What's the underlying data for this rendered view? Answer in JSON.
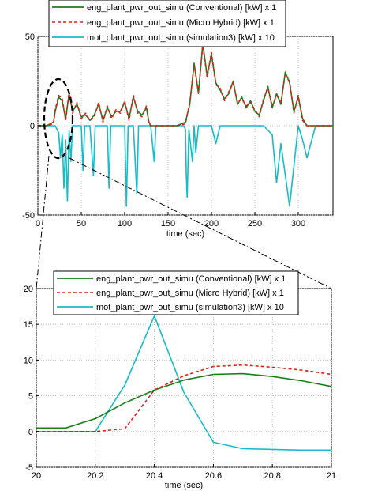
{
  "chart_data": [
    {
      "type": "line",
      "xlabel": "time (sec)",
      "ylabel": "",
      "xlim": [
        0,
        340
      ],
      "ylim": [
        -50,
        50
      ],
      "xticks": [
        0,
        50,
        100,
        150,
        200,
        250,
        300
      ],
      "yticks": [
        -50,
        0,
        50
      ],
      "grid": true,
      "legend_position": "top",
      "colors": {
        "conventional": "#1a7f1a",
        "hybrid": "#e0201b",
        "motor": "#16bcc8",
        "zoom_marker": "#000000"
      },
      "series": [
        {
          "name": "eng_plant_pwr_out_simu (Conventional) [kW] x 1",
          "color": "#1a7f1a",
          "style": "solid",
          "x": [
            0,
            10,
            18,
            20,
            24,
            28,
            32,
            36,
            40,
            45,
            50,
            55,
            60,
            65,
            70,
            75,
            80,
            85,
            90,
            95,
            100,
            105,
            110,
            115,
            120,
            125,
            128,
            130,
            140,
            150,
            160,
            170,
            175,
            180,
            185,
            190,
            195,
            200,
            205,
            210,
            215,
            220,
            225,
            230,
            235,
            240,
            245,
            250,
            255,
            260,
            265,
            270,
            275,
            280,
            285,
            290,
            295,
            300,
            305,
            310,
            315,
            320,
            330,
            340
          ],
          "y": [
            0,
            0,
            2,
            8,
            16,
            14,
            4,
            18,
            8,
            12,
            5,
            6,
            3,
            6,
            12,
            3,
            10,
            5,
            8,
            8,
            13,
            4,
            16,
            8,
            6,
            10,
            2,
            0,
            0,
            0,
            0,
            2,
            12,
            35,
            18,
            46,
            28,
            40,
            24,
            20,
            15,
            18,
            25,
            12,
            16,
            10,
            14,
            8,
            6,
            14,
            22,
            10,
            18,
            12,
            30,
            24,
            8,
            16,
            4,
            0,
            0,
            0,
            0,
            0
          ]
        },
        {
          "name": "eng_plant_pwr_out_simu (Micro Hybrid) [kW] x 1",
          "color": "#e0201b",
          "style": "dashed",
          "x": [
            0,
            10,
            18,
            20,
            24,
            28,
            32,
            36,
            40,
            45,
            50,
            55,
            60,
            65,
            70,
            75,
            80,
            85,
            90,
            95,
            100,
            105,
            110,
            115,
            120,
            125,
            128,
            130,
            140,
            150,
            160,
            170,
            175,
            180,
            185,
            190,
            195,
            200,
            205,
            210,
            215,
            220,
            225,
            230,
            235,
            240,
            245,
            250,
            255,
            260,
            265,
            270,
            275,
            280,
            285,
            290,
            295,
            300,
            305,
            310,
            315,
            320,
            330,
            340
          ],
          "y": [
            0,
            0,
            1,
            9,
            17,
            15,
            3,
            19,
            7,
            13,
            4,
            7,
            3,
            5,
            13,
            2,
            11,
            4,
            9,
            7,
            14,
            3,
            17,
            7,
            5,
            11,
            1,
            0,
            0,
            0,
            0,
            1,
            13,
            34,
            19,
            45,
            27,
            41,
            23,
            21,
            14,
            19,
            24,
            13,
            15,
            11,
            13,
            9,
            5,
            15,
            21,
            11,
            17,
            13,
            29,
            25,
            7,
            17,
            3,
            0,
            0,
            0,
            0,
            0
          ]
        },
        {
          "name": "mot_plant_pwr_out_simu (simulation3) [kW] x 10",
          "color": "#16bcc8",
          "style": "solid",
          "x": [
            0,
            20,
            24,
            26,
            28,
            30,
            32,
            34,
            36,
            38,
            40,
            50,
            52,
            54,
            60,
            64,
            66,
            70,
            80,
            82,
            84,
            90,
            100,
            102,
            104,
            110,
            114,
            116,
            120,
            130,
            134,
            136,
            150,
            160,
            168,
            170,
            171,
            172,
            174,
            178,
            180,
            182,
            185,
            190,
            200,
            205,
            210,
            220,
            240,
            260,
            270,
            275,
            280,
            290,
            300,
            305,
            310,
            320,
            340
          ],
          "y": [
            0,
            0,
            -4,
            -18,
            -5,
            -35,
            -8,
            -42,
            -3,
            -20,
            0,
            0,
            -25,
            0,
            0,
            -28,
            0,
            0,
            0,
            -35,
            0,
            0,
            0,
            -45,
            0,
            0,
            -38,
            0,
            0,
            0,
            -20,
            0,
            0,
            0,
            0,
            -2,
            -28,
            -40,
            -2,
            -20,
            0,
            -15,
            0,
            0,
            0,
            -10,
            0,
            0,
            0,
            0,
            -5,
            -32,
            -10,
            -45,
            0,
            -8,
            -18,
            0,
            0
          ]
        }
      ]
    },
    {
      "type": "line",
      "xlabel": "time (sec)",
      "ylabel": "",
      "xlim": [
        20,
        21
      ],
      "ylim": [
        -5,
        20
      ],
      "xticks": [
        "20",
        "20.2",
        "20.4",
        "20.6",
        "20.8",
        "21"
      ],
      "yticks": [
        "-5",
        "0",
        "5",
        "10",
        "15",
        "20"
      ],
      "grid": true,
      "legend_position": "top",
      "series": [
        {
          "name": "eng_plant_pwr_out_simu (Conventional) [kW] x 1",
          "color": "#1a7f1a",
          "style": "solid",
          "x": [
            20,
            20.1,
            20.2,
            20.3,
            20.4,
            20.5,
            20.6,
            20.7,
            20.8,
            20.9,
            21
          ],
          "y": [
            0.5,
            0.5,
            1.8,
            4.0,
            5.8,
            7.2,
            8.0,
            8.1,
            7.7,
            7.1,
            6.3
          ]
        },
        {
          "name": "eng_plant_pwr_out_simu (Micro Hybrid) [kW] x 1",
          "color": "#e0201b",
          "style": "dashed",
          "x": [
            20,
            20.1,
            20.2,
            20.3,
            20.4,
            20.5,
            20.6,
            20.7,
            20.8,
            20.9,
            21
          ],
          "y": [
            0,
            0,
            0,
            0.4,
            5.8,
            7.8,
            9.1,
            9.3,
            9.0,
            8.6,
            8.0
          ]
        },
        {
          "name": "mot_plant_pwr_out_simu (simulation3) [kW] x 10",
          "color": "#16bcc8",
          "style": "solid",
          "x": [
            20,
            20.1,
            20.2,
            20.3,
            20.4,
            20.5,
            20.6,
            20.7,
            20.8,
            20.9,
            21
          ],
          "y": [
            0,
            0,
            0,
            6.5,
            16.2,
            5.5,
            -1.5,
            -2.4,
            -2.5,
            -2.6,
            -2.6
          ]
        }
      ]
    }
  ]
}
